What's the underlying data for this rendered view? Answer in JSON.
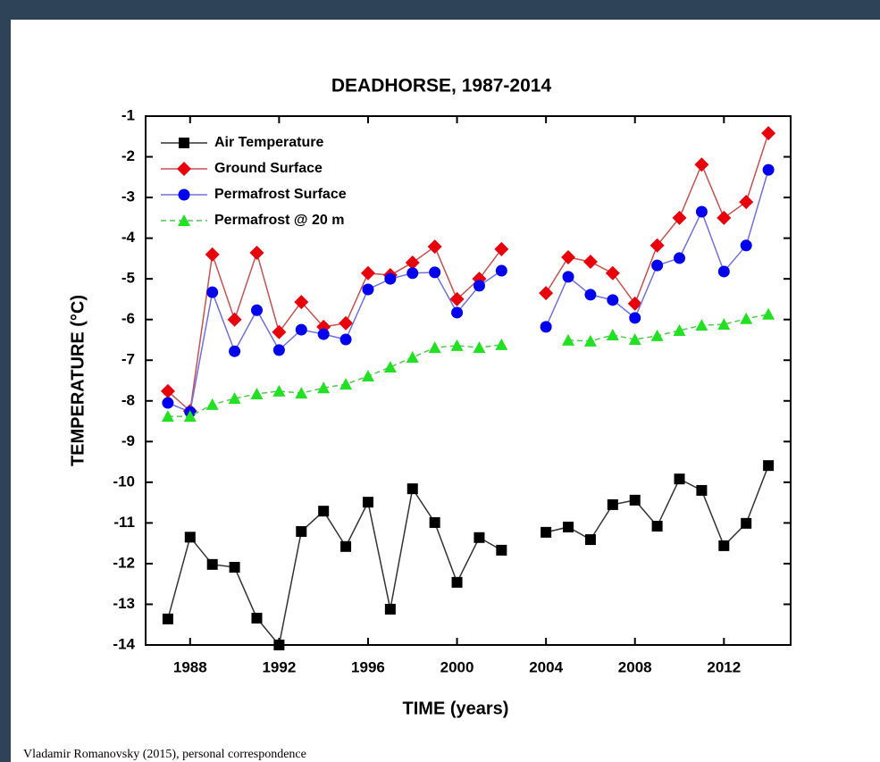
{
  "caption": "Vladamir Romanovsky (2015), personal correspondence",
  "chart_data": {
    "type": "line",
    "title": "DEADHORSE, 1987-2014",
    "x_label": "TIME (years)",
    "y_label": "TEMPERATURE (°C)",
    "x": [
      1987,
      1988,
      1989,
      1990,
      1991,
      1992,
      1993,
      1994,
      1995,
      1996,
      1997,
      1998,
      1999,
      2000,
      2001,
      2002,
      2003,
      2004,
      2005,
      2006,
      2007,
      2008,
      2009,
      2010,
      2011,
      2012,
      2013,
      2014
    ],
    "xlim": [
      1986,
      2015
    ],
    "xticks": [
      1988,
      1992,
      1996,
      2000,
      2004,
      2008,
      2012
    ],
    "ylim": [
      -14,
      -1
    ],
    "yticks": [
      -1,
      -2,
      -3,
      -4,
      -5,
      -6,
      -7,
      -8,
      -9,
      -10,
      -11,
      -12,
      -13,
      -14
    ],
    "legend": "upper left",
    "series": [
      {
        "name": "Air Temperature",
        "color": "#000000",
        "line_color": "#333333",
        "marker": "square",
        "values": [
          -13.36,
          -11.35,
          -12.02,
          -12.09,
          -13.34,
          -14.0,
          -11.21,
          -10.71,
          -11.58,
          -10.49,
          -13.12,
          -10.16,
          -10.99,
          -12.46,
          -11.36,
          -11.67,
          null,
          -11.23,
          -11.1,
          -11.41,
          -10.55,
          -10.44,
          -11.08,
          -9.92,
          -10.2,
          -11.56,
          -11.01,
          -9.59
        ]
      },
      {
        "name": "Ground Surface",
        "color": "#e8000b",
        "line_color": "#c85050",
        "marker": "diamond",
        "values": [
          -7.76,
          -8.25,
          -4.4,
          -6.0,
          -4.36,
          -6.31,
          -5.57,
          -6.18,
          -6.09,
          -4.86,
          -4.91,
          -4.6,
          -4.21,
          -5.5,
          -5.0,
          -4.27,
          null,
          -5.35,
          -4.47,
          -4.58,
          -4.86,
          -5.61,
          -4.18,
          -3.5,
          -2.19,
          -3.5,
          -3.11,
          -1.42
        ]
      },
      {
        "name": "Permafrost Surface",
        "color": "#0000ee",
        "line_color": "#7070e0",
        "marker": "circle",
        "values": [
          -8.05,
          -8.27,
          -5.33,
          -6.78,
          -5.77,
          -6.75,
          -6.25,
          -6.36,
          -6.49,
          -5.26,
          -5.0,
          -4.86,
          -4.84,
          -5.83,
          -5.17,
          -4.8,
          null,
          -6.18,
          -4.95,
          -5.39,
          -5.52,
          -5.96,
          -4.67,
          -4.49,
          -3.35,
          -4.82,
          -4.18,
          -2.32
        ]
      },
      {
        "name": "Permafrost @ 20 m",
        "color": "#22e022",
        "line_color": "#50c850",
        "marker": "triangle",
        "dashed": true,
        "values": [
          -8.38,
          -8.38,
          -8.09,
          -7.94,
          -7.83,
          -7.76,
          -7.81,
          -7.68,
          -7.59,
          -7.39,
          -7.17,
          -6.93,
          -6.69,
          -6.64,
          -6.69,
          -6.62,
          null,
          null,
          -6.51,
          -6.53,
          -6.38,
          -6.49,
          -6.4,
          -6.27,
          -6.14,
          -6.12,
          -5.98,
          -5.87
        ]
      }
    ]
  }
}
